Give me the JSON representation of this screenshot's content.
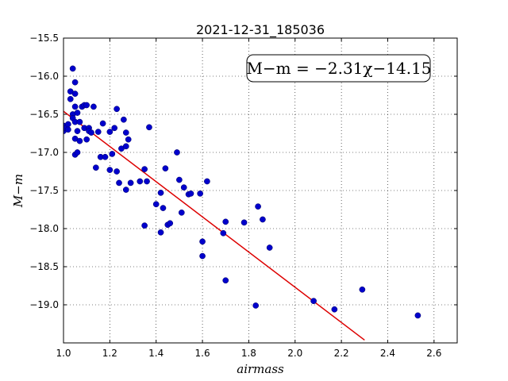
{
  "chart_data": {
    "type": "scatter",
    "title": "2021-12-31_185036",
    "xlabel": "airmass",
    "ylabel": "M−m",
    "xlim": [
      1.0,
      2.7
    ],
    "ylim": [
      -19.5,
      -15.5
    ],
    "x_ticks": [
      1.0,
      1.2,
      1.4,
      1.6,
      1.8,
      2.0,
      2.2,
      2.4,
      2.6
    ],
    "x_tick_labels": [
      "1.0",
      "1.2",
      "1.4",
      "1.6",
      "1.8",
      "2.0",
      "2.2",
      "2.4",
      "2.6"
    ],
    "y_ticks": [
      -15.5,
      -16.0,
      -16.5,
      -17.0,
      -17.5,
      -18.0,
      -18.5,
      -19.0
    ],
    "y_tick_labels": [
      "−15.5",
      "−16.0",
      "−16.5",
      "−17.0",
      "−17.5",
      "−18.0",
      "−18.5",
      "−19.0"
    ],
    "grid": true,
    "annotation": "M−m = −2.31χ−14.15",
    "annotation_position": "top-right",
    "fit": {
      "slope": -2.31,
      "intercept": -14.15,
      "x_range": [
        1.0,
        2.3
      ]
    },
    "colors": {
      "points": "#0000cc",
      "fit_line": "#dd0000"
    },
    "points": [
      [
        1.0,
        -16.65
      ],
      [
        1.0,
        -16.72
      ],
      [
        1.01,
        -16.68
      ],
      [
        1.02,
        -16.7
      ],
      [
        1.02,
        -16.63
      ],
      [
        1.03,
        -16.3
      ],
      [
        1.03,
        -16.2
      ],
      [
        1.04,
        -16.5
      ],
      [
        1.04,
        -16.55
      ],
      [
        1.04,
        -15.9
      ],
      [
        1.05,
        -16.23
      ],
      [
        1.05,
        -16.82
      ],
      [
        1.05,
        -16.6
      ],
      [
        1.05,
        -16.08
      ],
      [
        1.05,
        -16.4
      ],
      [
        1.05,
        -17.03
      ],
      [
        1.06,
        -16.72
      ],
      [
        1.06,
        -17.0
      ],
      [
        1.06,
        -16.48
      ],
      [
        1.07,
        -16.85
      ],
      [
        1.07,
        -16.6
      ],
      [
        1.08,
        -16.4
      ],
      [
        1.09,
        -16.38
      ],
      [
        1.09,
        -16.68
      ],
      [
        1.1,
        -16.83
      ],
      [
        1.1,
        -16.38
      ],
      [
        1.11,
        -16.68
      ],
      [
        1.11,
        -16.72
      ],
      [
        1.12,
        -16.74
      ],
      [
        1.13,
        -16.4
      ],
      [
        1.14,
        -17.2
      ],
      [
        1.15,
        -16.73
      ],
      [
        1.16,
        -17.06
      ],
      [
        1.17,
        -16.62
      ],
      [
        1.18,
        -17.06
      ],
      [
        1.2,
        -16.73
      ],
      [
        1.2,
        -17.23
      ],
      [
        1.21,
        -17.02
      ],
      [
        1.22,
        -16.68
      ],
      [
        1.23,
        -16.43
      ],
      [
        1.23,
        -17.25
      ],
      [
        1.24,
        -17.4
      ],
      [
        1.25,
        -16.95
      ],
      [
        1.26,
        -16.57
      ],
      [
        1.27,
        -17.49
      ],
      [
        1.27,
        -16.92
      ],
      [
        1.27,
        -16.74
      ],
      [
        1.28,
        -16.83
      ],
      [
        1.29,
        -17.4
      ],
      [
        1.33,
        -17.38
      ],
      [
        1.35,
        -17.22
      ],
      [
        1.35,
        -17.96
      ],
      [
        1.36,
        -17.38
      ],
      [
        1.37,
        -16.67
      ],
      [
        1.4,
        -17.68
      ],
      [
        1.42,
        -18.05
      ],
      [
        1.42,
        -17.53
      ],
      [
        1.43,
        -17.73
      ],
      [
        1.44,
        -17.21
      ],
      [
        1.45,
        -17.95
      ],
      [
        1.46,
        -17.93
      ],
      [
        1.49,
        -17.0
      ],
      [
        1.5,
        -17.36
      ],
      [
        1.51,
        -17.79
      ],
      [
        1.52,
        -17.46
      ],
      [
        1.54,
        -17.55
      ],
      [
        1.55,
        -17.54
      ],
      [
        1.59,
        -17.54
      ],
      [
        1.6,
        -18.17
      ],
      [
        1.6,
        -18.36
      ],
      [
        1.62,
        -17.38
      ],
      [
        1.69,
        -18.06
      ],
      [
        1.7,
        -17.91
      ],
      [
        1.7,
        -18.68
      ],
      [
        1.78,
        -17.92
      ],
      [
        1.83,
        -19.01
      ],
      [
        1.84,
        -17.71
      ],
      [
        1.86,
        -17.88
      ],
      [
        1.89,
        -18.25
      ],
      [
        2.08,
        -18.95
      ],
      [
        2.17,
        -19.06
      ],
      [
        2.29,
        -18.8
      ],
      [
        2.53,
        -19.14
      ]
    ]
  }
}
